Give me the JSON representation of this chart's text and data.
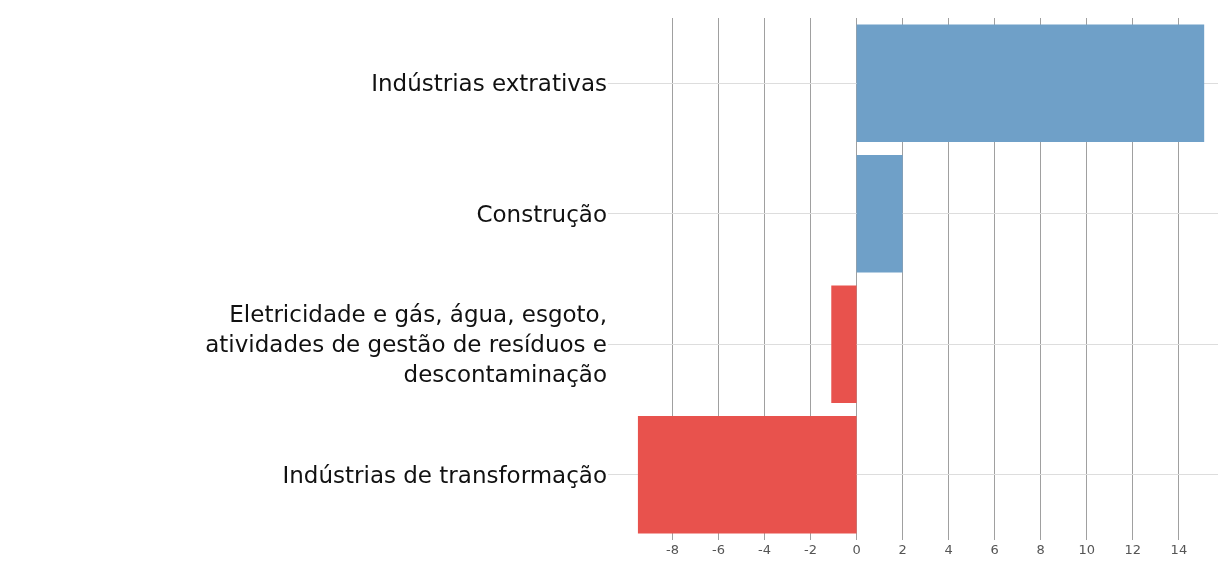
{
  "chart_data": {
    "type": "bar",
    "orientation": "horizontal",
    "categories": [
      "Indústrias extrativas",
      "Construção",
      "Eletricidade e gás, água, esgoto, atividades de gestão de resíduos e descontaminação",
      "Indústrias de transformação"
    ],
    "values": [
      15.1,
      2.0,
      -1.1,
      -9.5
    ],
    "colors": [
      "#6fa0c8",
      "#6fa0c8",
      "#e8524d",
      "#e8524d"
    ],
    "xlim": [
      -10.8,
      15.7
    ],
    "xticks": [
      -8,
      -6,
      -4,
      -2,
      0,
      2,
      4,
      6,
      8,
      10,
      12,
      14
    ],
    "grid": true,
    "legend": false
  }
}
